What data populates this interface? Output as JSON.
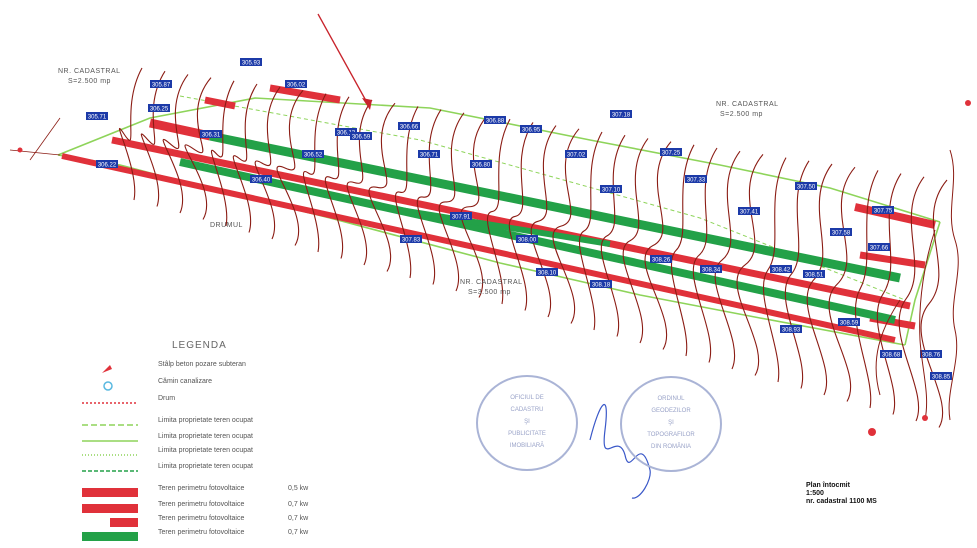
{
  "legend": {
    "title": "LEGENDA",
    "items": [
      {
        "label": "Stâlp beton pozare subteran",
        "extra": ""
      },
      {
        "label": "Cămin canalizare",
        "extra": ""
      },
      {
        "label": "Drum",
        "extra": ""
      },
      {
        "label": "Limita proprietate teren ocupat",
        "extra": ""
      },
      {
        "label": "Limita proprietate teren ocupat",
        "extra": ""
      },
      {
        "label": "Limita proprietate teren ocupat",
        "extra": ""
      },
      {
        "label": "Limita proprietate teren ocupat",
        "extra": ""
      },
      {
        "label": "Teren perimetru fotovoltaice",
        "extra": "0,5 kw"
      },
      {
        "label": "Teren perimetru fotovoltaice",
        "extra": "0,7 kw"
      },
      {
        "label": "Teren perimetru fotovoltaice",
        "extra": "0,7 kw"
      },
      {
        "label": "Teren perimetru fotovoltaice",
        "extra": "0,7 kw"
      }
    ]
  },
  "map_labels": {
    "top_left": "NR. CADASTRAL",
    "top_left_sub": "S=2.500 mp",
    "top_right": "NR. CADASTRAL",
    "top_right_sub": "S=2.500 mp",
    "bottom_mid": "NR. CADASTRAL",
    "bottom_mid_sub": "S=3.500 mp",
    "left_road": "DRUM",
    "road_bottom": "DRUMUL"
  },
  "stamps": {
    "left": [
      "OFICIUL DE",
      "CADASTRU",
      "ŞI",
      "PUBLICITATE",
      "IMOBILIARĂ"
    ],
    "right": [
      "ORDINUL",
      "GEODEZILOR",
      "ŞI",
      "TOPOGRAFILOR",
      "DIN ROMÂNIA"
    ]
  },
  "scale_note": {
    "line1": "Plan întocmit",
    "line2": "1:500",
    "line3": "nr. cadastral 1100 MS"
  },
  "elevation_tags": [
    "305.71",
    "305.87",
    "305.93",
    "306.02",
    "306.13",
    "306.22",
    "306.25",
    "306.31",
    "306.40",
    "306.52",
    "306.59",
    "306.66",
    "306.71",
    "306.80",
    "306.88",
    "306.95",
    "307.02",
    "307.10",
    "307.18",
    "307.25",
    "307.33",
    "307.41",
    "307.50",
    "307.58",
    "307.66",
    "307.75",
    "307.83",
    "307.91",
    "308.00",
    "308.10",
    "308.18",
    "308.26",
    "308.34",
    "308.42",
    "308.51",
    "308.59",
    "308.68",
    "308.76",
    "308.85",
    "308.93"
  ],
  "colors": {
    "contour": "#8b1c14",
    "red_band": "#e0313a",
    "green_band": "#23a148",
    "boundary": "#8ed45a",
    "label_blue": "#1c3aa8",
    "stamp": "#aab4d6"
  }
}
